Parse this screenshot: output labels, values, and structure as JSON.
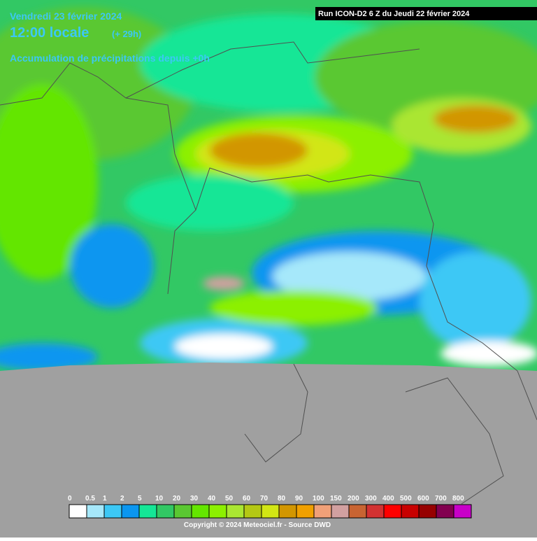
{
  "header": {
    "date": "Vendredi 23 février 2024",
    "time": "12:00 locale",
    "offset": "(+ 29h)",
    "subtitle": "Accumulation de précipitations depuis +0h",
    "run": "Run ICON-D2 6 Z du Jeudi 22 février 2024"
  },
  "legend": {
    "items": [
      {
        "value": 0,
        "color": "#ffffff"
      },
      {
        "value": 0.5,
        "color": "#a6e8fa"
      },
      {
        "value": 1,
        "color": "#3cc8f5"
      },
      {
        "value": 2,
        "color": "#0a96f0"
      },
      {
        "value": 5,
        "color": "#14e696"
      },
      {
        "value": 10,
        "color": "#32c864"
      },
      {
        "value": 20,
        "color": "#5ac832"
      },
      {
        "value": 30,
        "color": "#64e600"
      },
      {
        "value": 40,
        "color": "#8cf000"
      },
      {
        "value": 50,
        "color": "#aae632"
      },
      {
        "value": 60,
        "color": "#b4c814"
      },
      {
        "value": 70,
        "color": "#d2e614"
      },
      {
        "value": 80,
        "color": "#d29600"
      },
      {
        "value": 90,
        "color": "#f0a000"
      },
      {
        "value": 100,
        "color": "#f0a078"
      },
      {
        "value": 150,
        "color": "#d2a0a0"
      },
      {
        "value": 200,
        "color": "#c86432"
      },
      {
        "value": 300,
        "color": "#d23232"
      },
      {
        "value": 400,
        "color": "#ff0000"
      },
      {
        "value": 500,
        "color": "#c80000"
      },
      {
        "value": 600,
        "color": "#960000"
      },
      {
        "value": 700,
        "color": "#820050"
      },
      {
        "value": 800,
        "color": "#c800c8"
      }
    ]
  },
  "footer": {
    "copyright": "Copyright © 2024 Meteociel.fr - Source DWD"
  }
}
